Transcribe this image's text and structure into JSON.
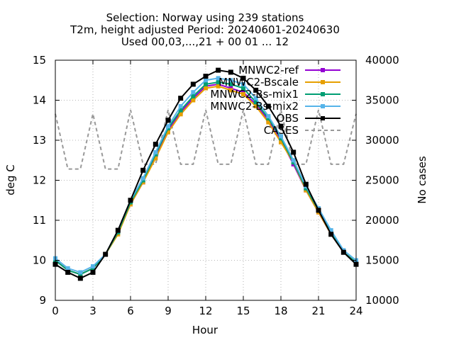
{
  "chart_data": {
    "type": "line",
    "title_lines": [
      "Selection: Norway using   239 stations",
      "T2m, height adjusted   Period: 20240601-20240630",
      "Used 00,03,...,21 + 00 01 ... 12"
    ],
    "xlabel": "Hour",
    "ylabel": "deg C",
    "y2label": "No cases",
    "xlim": [
      0,
      24
    ],
    "ylim": [
      9,
      15
    ],
    "y2lim": [
      10000,
      40000
    ],
    "x_ticks": [
      0,
      3,
      6,
      9,
      12,
      15,
      18,
      21,
      24
    ],
    "y_ticks": [
      9,
      10,
      11,
      12,
      13,
      14,
      15
    ],
    "y2_ticks": [
      10000,
      15000,
      20000,
      25000,
      30000,
      35000,
      40000
    ],
    "grid": true,
    "legend_position": "top-right",
    "x": [
      0,
      1,
      2,
      3,
      4,
      5,
      6,
      7,
      8,
      9,
      10,
      11,
      12,
      13,
      14,
      15,
      16,
      17,
      18,
      19,
      20,
      21,
      22,
      23,
      24
    ],
    "series": [
      {
        "name": "MNWC2-ref",
        "color": "#9400d3",
        "marker": "square",
        "values": [
          10.0,
          9.75,
          9.65,
          9.8,
          10.15,
          10.7,
          11.4,
          11.95,
          12.6,
          13.25,
          13.7,
          14.05,
          14.35,
          14.4,
          14.3,
          14.2,
          13.9,
          13.5,
          13.0,
          12.4,
          11.75,
          11.2,
          10.65,
          10.2,
          9.95
        ]
      },
      {
        "name": "MNWC2-Bscale",
        "color": "#e69f00",
        "marker": "square",
        "values": [
          10.0,
          9.75,
          9.65,
          9.8,
          10.15,
          10.65,
          11.4,
          11.95,
          12.55,
          13.2,
          13.65,
          14.0,
          14.3,
          14.35,
          14.25,
          14.15,
          13.85,
          13.45,
          12.95,
          12.45,
          11.75,
          11.2,
          10.65,
          10.2,
          9.95
        ]
      },
      {
        "name": "MNWC2-Bs-mix1",
        "color": "#009e73",
        "marker": "square",
        "values": [
          10.0,
          9.75,
          9.65,
          9.8,
          10.15,
          10.7,
          11.45,
          12.0,
          12.65,
          13.3,
          13.75,
          14.1,
          14.4,
          14.45,
          14.4,
          14.3,
          13.95,
          13.55,
          13.05,
          12.45,
          11.8,
          11.25,
          10.7,
          10.2,
          9.95
        ]
      },
      {
        "name": "MNWC2-Bs-mix2",
        "color": "#56b4e9",
        "marker": "square",
        "values": [
          10.05,
          9.8,
          9.7,
          9.85,
          10.15,
          10.75,
          11.5,
          12.05,
          12.7,
          13.35,
          13.85,
          14.2,
          14.5,
          14.55,
          14.5,
          14.4,
          14.05,
          13.6,
          13.1,
          12.5,
          11.85,
          11.3,
          10.75,
          10.25,
          10.0
        ]
      },
      {
        "name": "OBS",
        "color": "#000000",
        "marker": "filled-square",
        "values": [
          9.9,
          9.7,
          9.55,
          9.7,
          10.15,
          10.75,
          11.5,
          12.25,
          12.9,
          13.5,
          14.05,
          14.4,
          14.6,
          14.75,
          14.7,
          14.55,
          14.25,
          13.85,
          13.35,
          12.7,
          11.9,
          11.25,
          10.65,
          10.2,
          9.9
        ]
      }
    ],
    "cases": {
      "name": "CASES",
      "color": "#999999",
      "x": [
        0,
        1,
        2,
        3,
        4,
        5,
        6,
        7,
        8,
        9,
        10,
        11,
        12,
        13,
        14,
        15,
        16,
        17,
        18,
        19,
        20,
        21,
        22,
        23,
        24
      ],
      "values": [
        33300,
        26400,
        26400,
        33300,
        26400,
        26400,
        33800,
        27000,
        27000,
        33800,
        27000,
        27000,
        33800,
        27000,
        27000,
        33800,
        27000,
        27000,
        33800,
        27000,
        27000,
        33800,
        27000,
        27000,
        33300
      ]
    }
  }
}
